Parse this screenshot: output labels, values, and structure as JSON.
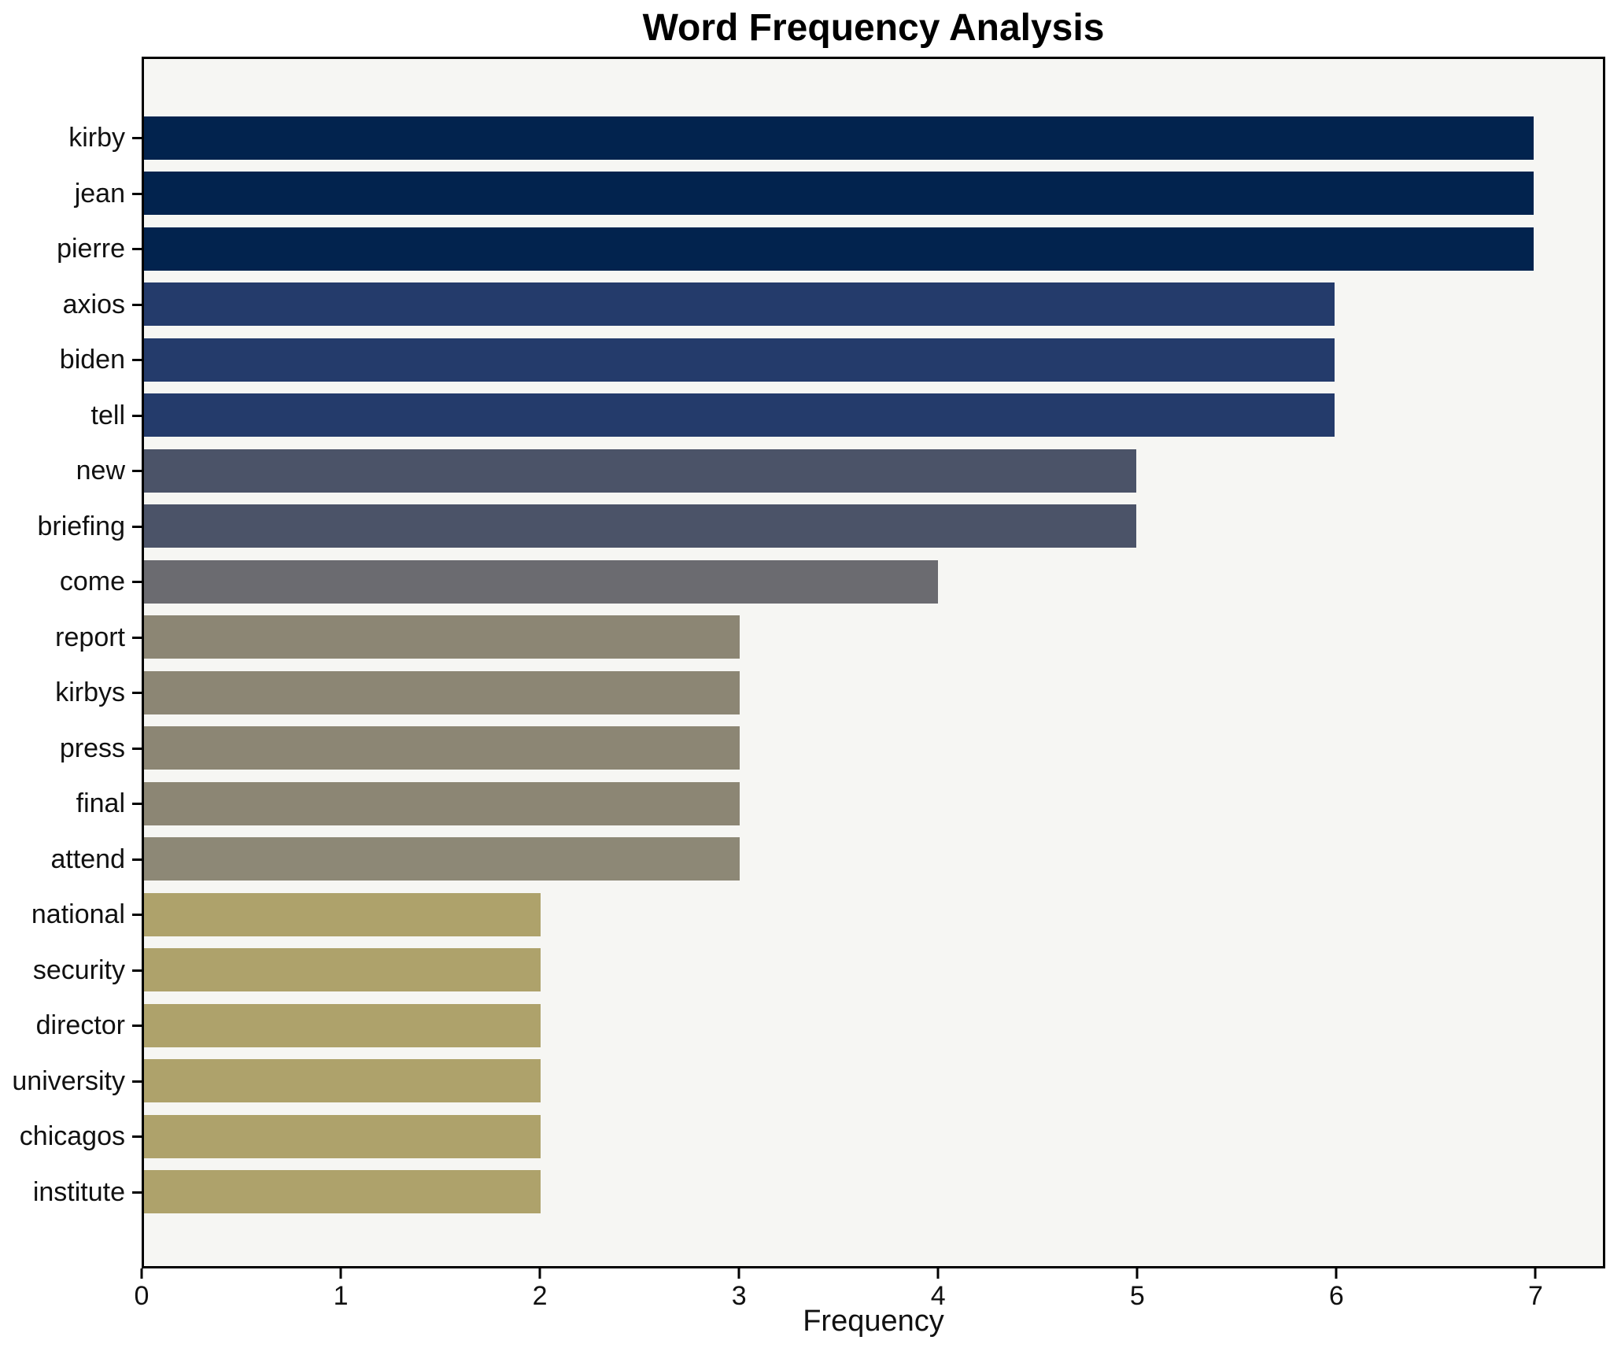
{
  "chart_data": {
    "type": "bar",
    "orientation": "horizontal",
    "title": "Word Frequency Analysis",
    "xlabel": "Frequency",
    "ylabel": "",
    "categories": [
      "kirby",
      "jean",
      "pierre",
      "axios",
      "biden",
      "tell",
      "new",
      "briefing",
      "come",
      "report",
      "kirbys",
      "press",
      "final",
      "attend",
      "national",
      "security",
      "director",
      "university",
      "chicagos",
      "institute"
    ],
    "values": [
      7,
      7,
      7,
      6,
      6,
      6,
      5,
      5,
      4,
      3,
      3,
      3,
      3,
      3,
      2,
      2,
      2,
      2,
      2,
      2
    ],
    "bar_colors": [
      "#02234e",
      "#02234e",
      "#02234e",
      "#243b6b",
      "#243b6b",
      "#243b6b",
      "#4b5368",
      "#4b5368",
      "#6b6b70",
      "#8c8674",
      "#8c8674",
      "#8c8674",
      "#8c8674",
      "#8d8876",
      "#aea26b",
      "#aea26b",
      "#aea26b",
      "#aea26b",
      "#aea26b",
      "#aea26b"
    ],
    "xticks": [
      0,
      1,
      2,
      3,
      4,
      5,
      6,
      7
    ],
    "xlim": [
      0,
      7.35
    ],
    "grid": false,
    "legend_position": "none",
    "plot_background": "#f6f6f3",
    "figure_background": "#ffffff",
    "axis_color": "#000000"
  }
}
